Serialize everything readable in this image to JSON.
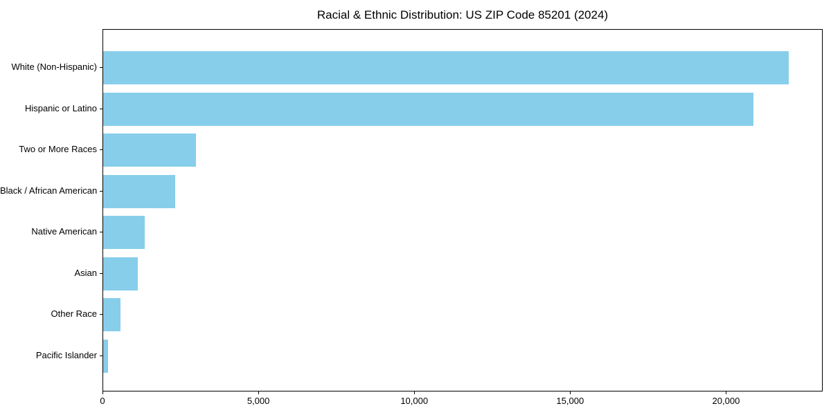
{
  "chart_data": {
    "type": "bar",
    "orientation": "horizontal",
    "title": "Racial & Ethnic Distribution: US ZIP Code 85201 (2024)",
    "categories": [
      "White (Non-Hispanic)",
      "Hispanic or Latino",
      "Two or More Races",
      "Black / African American",
      "Native American",
      "Asian",
      "Other Race",
      "Pacific Islander"
    ],
    "values": [
      22000,
      20850,
      2970,
      2300,
      1340,
      1100,
      560,
      150
    ],
    "bar_color": "#87CEEB",
    "xlabel": "",
    "ylabel": "",
    "xlim": [
      0,
      23100
    ],
    "x_ticks": [
      0,
      5000,
      10000,
      15000,
      20000
    ],
    "x_tick_labels": [
      "0",
      "5,000",
      "10,000",
      "15,000",
      "20,000"
    ],
    "grid": false,
    "legend": "none",
    "background_color": "#ffffff",
    "text_color": "#000000"
  }
}
